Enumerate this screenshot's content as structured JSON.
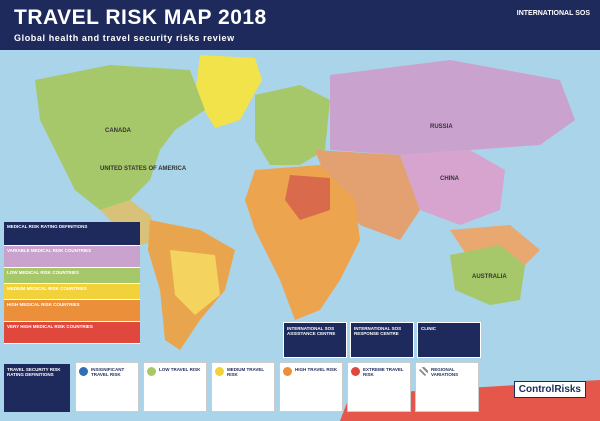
{
  "header": {
    "title": "TRAVEL RISK MAP 2018",
    "subtitle": "Global health and travel security risks review",
    "brand": "INTERNATIONAL SOS"
  },
  "countries": [
    "CANADA",
    "UNITED STATES OF AMERICA",
    "RUSSIA",
    "CHINA",
    "AUSTRALIA"
  ],
  "medical_legend": [
    "MEDICAL RISK RATING DEFINITIONS",
    "VARIABLE MEDICAL RISK COUNTRIES",
    "LOW MEDICAL RISK COUNTRIES",
    "MEDIUM MEDICAL RISK COUNTRIES",
    "HIGH MEDICAL RISK COUNTRIES",
    "VERY HIGH MEDICAL RISK COUNTRIES"
  ],
  "security_definitions": "TRAVEL SECURITY RISK RATING DEFINITIONS",
  "risk_cards": [
    "INSIGNIFICANT TRAVEL RISK",
    "LOW TRAVEL RISK",
    "MEDIUM TRAVEL RISK",
    "HIGH TRAVEL RISK",
    "EXTREME TRAVEL RISK",
    "REGIONAL VARIATIONS"
  ],
  "info_boxes": [
    "INTERNATIONAL SOS ASSISTANCE CENTRE",
    "INTERNATIONAL SOS RESPONSE CENTRE",
    "CLINIC"
  ],
  "logo": "ControlRisks"
}
